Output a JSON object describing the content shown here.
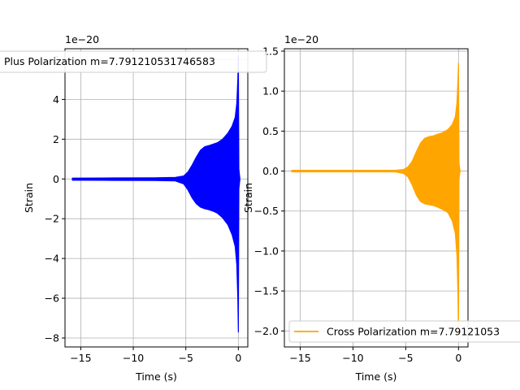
{
  "chart_data": [
    {
      "type": "line",
      "title": "",
      "xlabel": "Time (s)",
      "ylabel": "Strain",
      "offset_label": "1e−20",
      "xlim": [
        -16.5,
        0.9
      ],
      "ylim": [
        -8.45,
        6.55
      ],
      "xticks": [
        -15,
        -10,
        -5,
        0
      ],
      "xtick_labels": [
        "−15",
        "−10",
        "−5",
        "0"
      ],
      "yticks": [
        -8,
        -6,
        -4,
        -2,
        0,
        2,
        4,
        6
      ],
      "ytick_labels": [
        "−8",
        "−6",
        "−4",
        "−2",
        "0",
        "2",
        "4",
        "6"
      ],
      "grid": true,
      "legend": {
        "placement": "upper-left (clipped past the axes)",
        "text": "Plus Polarization m=7.791210531746583"
      },
      "series": [
        {
          "name": "Plus Polarization m=7.791210531746583",
          "color": "#0000ff",
          "envelope": {
            "t": [
              -15.8,
              -12,
              -8,
              -6,
              -5.2,
              -4.8,
              -4.4,
              -4.0,
              -3.6,
              -3.2,
              -2.8,
              -2.4,
              -2.0,
              -1.5,
              -1.0,
              -0.6,
              -0.3,
              -0.15,
              -0.05,
              0.0,
              0.05,
              0.15
            ],
            "upper": [
              0.04,
              0.05,
              0.06,
              0.08,
              0.15,
              0.35,
              0.7,
              1.1,
              1.45,
              1.62,
              1.68,
              1.75,
              1.82,
              2.0,
              2.3,
              2.65,
              3.1,
              3.8,
              5.0,
              6.2,
              0.5,
              0.0
            ],
            "lower": [
              -0.06,
              -0.07,
              -0.08,
              -0.1,
              -0.25,
              -0.55,
              -0.95,
              -1.25,
              -1.42,
              -1.5,
              -1.55,
              -1.62,
              -1.72,
              -1.95,
              -2.3,
              -2.8,
              -3.4,
              -4.3,
              -6.0,
              -7.7,
              -0.5,
              0.0
            ]
          }
        }
      ]
    },
    {
      "type": "line",
      "title": "",
      "xlabel": "Time (s)",
      "ylabel": "Strain",
      "offset_label": "1e−20",
      "xlim": [
        -16.5,
        0.9
      ],
      "ylim": [
        -2.2,
        1.53
      ],
      "xticks": [
        -15,
        -10,
        -5,
        0
      ],
      "xtick_labels": [
        "−15",
        "−10",
        "−5",
        "0"
      ],
      "yticks": [
        -2.0,
        -1.5,
        -1.0,
        -0.5,
        0.0,
        0.5,
        1.0,
        1.5
      ],
      "ytick_labels": [
        "−2.0",
        "−1.5",
        "−1.0",
        "−0.5",
        "0.0",
        "0.5",
        "1.0",
        "1.5"
      ],
      "grid": true,
      "legend": {
        "placement": "lower-right (clipped past the axes)",
        "text": "Cross Polarization m=7.79121053"
      },
      "series": [
        {
          "name": "Cross Polarization m=7.79121053",
          "color": "#ffa500",
          "envelope": {
            "t": [
              -15.8,
              -12,
              -8,
              -6,
              -5.2,
              -4.8,
              -4.4,
              -4.0,
              -3.6,
              -3.2,
              -2.8,
              -2.4,
              -2.0,
              -1.5,
              -1.0,
              -0.6,
              -0.3,
              -0.15,
              -0.05,
              0.0,
              0.05,
              0.15
            ],
            "upper": [
              0.01,
              0.01,
              0.01,
              0.01,
              0.02,
              0.05,
              0.12,
              0.24,
              0.35,
              0.41,
              0.43,
              0.44,
              0.46,
              0.48,
              0.52,
              0.58,
              0.68,
              0.85,
              1.15,
              1.35,
              0.1,
              0.0
            ],
            "lower": [
              -0.01,
              -0.01,
              -0.01,
              -0.01,
              -0.03,
              -0.07,
              -0.17,
              -0.3,
              -0.38,
              -0.41,
              -0.42,
              -0.43,
              -0.45,
              -0.48,
              -0.52,
              -0.62,
              -0.78,
              -1.05,
              -1.55,
              -2.05,
              -0.1,
              0.0
            ]
          }
        }
      ]
    }
  ]
}
